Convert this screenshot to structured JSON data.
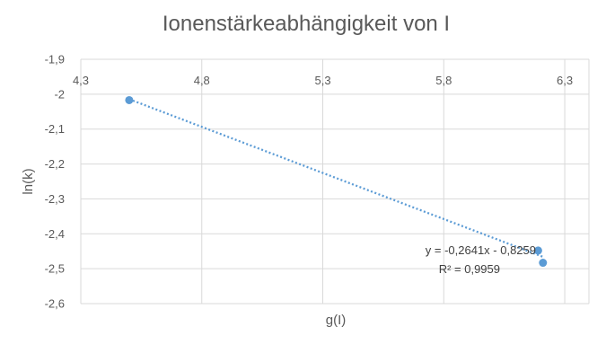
{
  "chart_data": {
    "type": "scatter",
    "title": "Ionenstärkeabhängigkeit von I",
    "xlabel": "g(I)",
    "ylabel": "ln(k)",
    "xlim": [
      4.3,
      6.4
    ],
    "ylim": [
      -2.6,
      -1.9
    ],
    "xticks": [
      "4,3",
      "4,8",
      "5,3",
      "5,8",
      "6,3"
    ],
    "xtick_values": [
      4.3,
      4.8,
      5.3,
      5.8,
      6.3
    ],
    "yticks": [
      "-1,9",
      "-2",
      "-2,1",
      "-2,2",
      "-2,3",
      "-2,4",
      "-2,5",
      "-2,6"
    ],
    "ytick_values": [
      -1.9,
      -2.0,
      -2.1,
      -2.2,
      -2.3,
      -2.4,
      -2.5,
      -2.6
    ],
    "x_axis_position": "top",
    "grid": true,
    "points": [
      {
        "x": 4.5,
        "y": -2.017
      },
      {
        "x": 6.19,
        "y": -2.448
      },
      {
        "x": 6.21,
        "y": -2.483
      }
    ],
    "trendline": {
      "type": "linear",
      "slope": -0.2641,
      "intercept": -0.8259,
      "equation": "y = -0,2641x - 0,8259",
      "r_squared": "R² = 0,9959"
    },
    "colors": {
      "marker": "#5b9bd5",
      "trendline": "#5b9bd5",
      "grid": "#d9d9d9",
      "text": "#595959"
    }
  }
}
